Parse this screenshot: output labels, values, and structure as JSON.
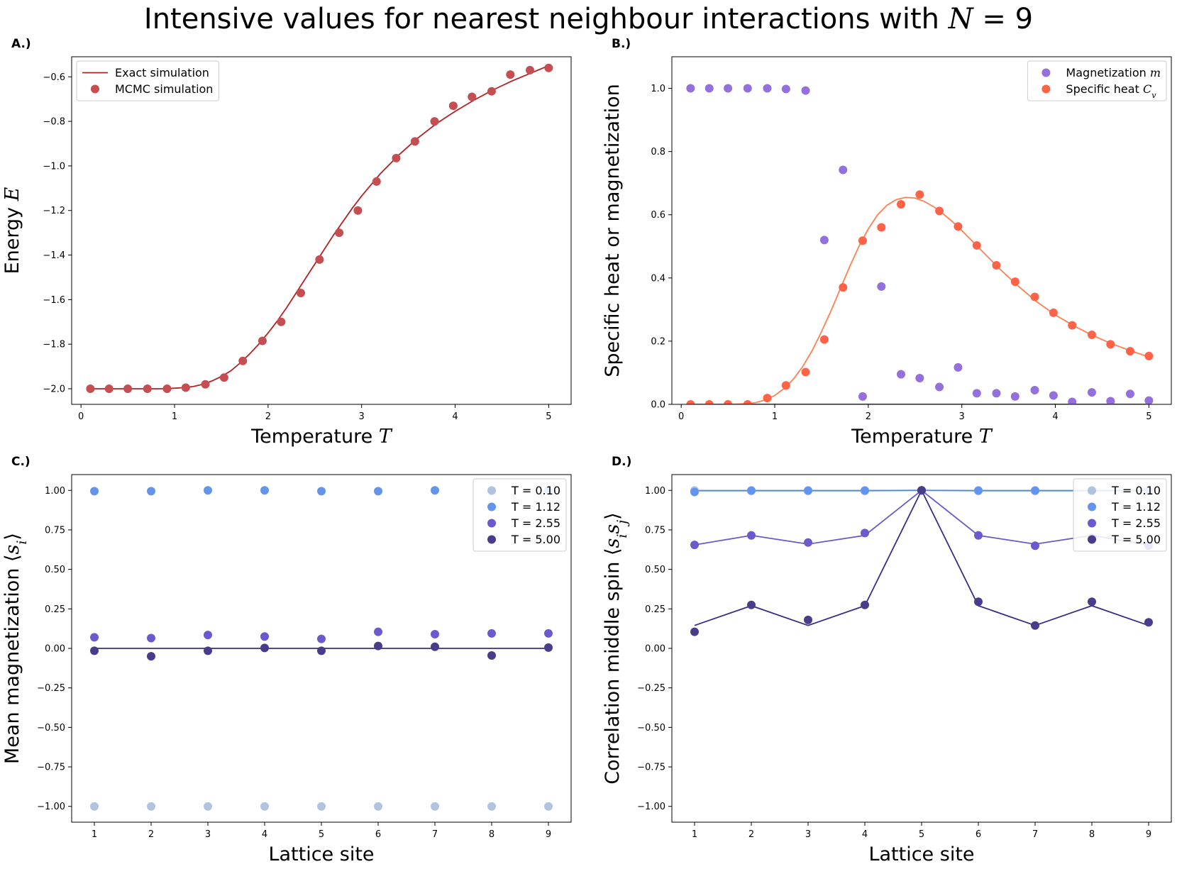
{
  "figure": {
    "title_prefix": "Intensive values for nearest neighbour interactions with ",
    "title_math": "N",
    "title_suffix": " = 9"
  },
  "chart_data": [
    {
      "id": "A",
      "panel_label": "A.)",
      "type": "scatter",
      "xlabel": "Temperature",
      "xlabel_math": "T",
      "ylabel": "Energy",
      "ylabel_math": "E",
      "xlim": [
        -0.1,
        5.24
      ],
      "ylim": [
        -2.07,
        -0.51
      ],
      "xticks": [
        0,
        1,
        2,
        3,
        4,
        5
      ],
      "xtick_labels": [
        "0",
        "1",
        "2",
        "3",
        "4",
        "5"
      ],
      "yticks": [
        -2.0,
        -1.8,
        -1.6,
        -1.4,
        -1.2,
        -1.0,
        -0.8,
        -0.6
      ],
      "ytick_labels": [
        "−2.0",
        "−1.8",
        "−1.6",
        "−1.4",
        "−1.2",
        "−1.0",
        "−0.8",
        "−0.6"
      ],
      "legend_position": "upper-left",
      "series": [
        {
          "name": "Exact simulation",
          "kind": "line",
          "color": "#b22222",
          "x": [
            0.1,
            0.3,
            0.5,
            0.7,
            0.9,
            1.1,
            1.2,
            1.3,
            1.4,
            1.5,
            1.6,
            1.7,
            1.8,
            1.9,
            2.0,
            2.1,
            2.2,
            2.3,
            2.4,
            2.5,
            2.6,
            2.7,
            2.8,
            2.9,
            3.0,
            3.2,
            3.4,
            3.6,
            3.8,
            4.0,
            4.2,
            4.4,
            4.6,
            4.8,
            5.0
          ],
          "y": [
            -2.0,
            -2.0,
            -2.0,
            -2.0,
            -2.0,
            -1.995,
            -1.99,
            -1.98,
            -1.965,
            -1.945,
            -1.92,
            -1.885,
            -1.845,
            -1.8,
            -1.75,
            -1.695,
            -1.635,
            -1.57,
            -1.505,
            -1.44,
            -1.375,
            -1.31,
            -1.25,
            -1.19,
            -1.135,
            -1.035,
            -0.95,
            -0.875,
            -0.81,
            -0.755,
            -0.705,
            -0.66,
            -0.62,
            -0.585,
            -0.55
          ]
        },
        {
          "name": "MCMC simulation",
          "kind": "scatter",
          "color": "#c44e52",
          "x": [
            0.1,
            0.3,
            0.5,
            0.71,
            0.92,
            1.12,
            1.33,
            1.53,
            1.73,
            1.94,
            2.14,
            2.35,
            2.55,
            2.76,
            2.96,
            3.16,
            3.37,
            3.57,
            3.78,
            3.98,
            4.18,
            4.39,
            4.59,
            4.8,
            5.0
          ],
          "y": [
            -2.0,
            -2.0,
            -2.0,
            -2.0,
            -2.0,
            -1.995,
            -1.98,
            -1.95,
            -1.875,
            -1.785,
            -1.7,
            -1.57,
            -1.42,
            -1.3,
            -1.2,
            -1.07,
            -0.965,
            -0.89,
            -0.8,
            -0.73,
            -0.69,
            -0.665,
            -0.59,
            -0.57,
            -0.56
          ]
        }
      ]
    },
    {
      "id": "B",
      "panel_label": "B.)",
      "type": "scatter",
      "xlabel": "Temperature",
      "xlabel_math": "T",
      "ylabel": "Specific heat or magnetization",
      "ylabel_math": "",
      "xlim": [
        -0.1,
        5.24
      ],
      "ylim": [
        0.0,
        1.1
      ],
      "xticks": [
        0,
        1,
        2,
        3,
        4,
        5
      ],
      "xtick_labels": [
        "0",
        "1",
        "2",
        "3",
        "4",
        "5"
      ],
      "yticks": [
        0.0,
        0.2,
        0.4,
        0.6,
        0.8,
        1.0
      ],
      "ytick_labels": [
        "0.0",
        "0.2",
        "0.4",
        "0.6",
        "0.8",
        "1.0"
      ],
      "legend_position": "upper-right",
      "series": [
        {
          "name": "Magnetization m line",
          "legend": false,
          "kind": "line",
          "color": "#3b2c85",
          "x": [
            0.1,
            5.0
          ],
          "y": [
            0.0,
            0.0
          ]
        },
        {
          "name": "Specific heat Cv line",
          "legend": false,
          "kind": "line",
          "color": "#ff7f50",
          "x": [
            0.1,
            0.5,
            0.7,
            0.8,
            0.9,
            1.0,
            1.1,
            1.2,
            1.3,
            1.4,
            1.5,
            1.6,
            1.7,
            1.8,
            1.9,
            2.0,
            2.1,
            2.2,
            2.3,
            2.4,
            2.5,
            2.6,
            2.7,
            2.8,
            2.9,
            3.0,
            3.2,
            3.4,
            3.6,
            3.8,
            4.0,
            4.2,
            4.4,
            4.6,
            4.8,
            5.0
          ],
          "y": [
            0.0,
            0.0,
            0.002,
            0.006,
            0.014,
            0.028,
            0.05,
            0.08,
            0.12,
            0.17,
            0.23,
            0.295,
            0.365,
            0.435,
            0.5,
            0.555,
            0.6,
            0.63,
            0.648,
            0.655,
            0.653,
            0.642,
            0.625,
            0.603,
            0.578,
            0.55,
            0.49,
            0.43,
            0.375,
            0.325,
            0.283,
            0.248,
            0.218,
            0.192,
            0.17,
            0.15
          ]
        },
        {
          "name": "Magnetization",
          "name_math": "m",
          "kind": "scatter",
          "color": "#9370db",
          "x": [
            0.1,
            0.3,
            0.5,
            0.71,
            0.92,
            1.12,
            1.33,
            1.53,
            1.73,
            1.94,
            2.14,
            2.35,
            2.55,
            2.76,
            2.96,
            3.16,
            3.37,
            3.57,
            3.78,
            3.98,
            4.18,
            4.39,
            4.59,
            4.8,
            5.0
          ],
          "y": [
            1.0,
            1.0,
            1.0,
            1.0,
            1.0,
            0.998,
            0.993,
            0.52,
            0.742,
            0.025,
            0.373,
            0.095,
            0.083,
            0.055,
            0.117,
            0.035,
            0.035,
            0.025,
            0.045,
            0.028,
            0.008,
            0.038,
            0.01,
            0.033,
            0.012
          ]
        },
        {
          "name": "Specific heat",
          "name_math": "C",
          "name_sub": "v",
          "kind": "scatter",
          "color": "#ff6347",
          "x": [
            0.1,
            0.3,
            0.5,
            0.71,
            0.92,
            1.12,
            1.33,
            1.53,
            1.73,
            1.94,
            2.14,
            2.35,
            2.55,
            2.76,
            2.96,
            3.16,
            3.37,
            3.57,
            3.78,
            3.98,
            4.18,
            4.39,
            4.59,
            4.8,
            5.0
          ],
          "y": [
            0.0,
            0.0,
            0.0,
            0.0,
            0.02,
            0.06,
            0.102,
            0.205,
            0.37,
            0.518,
            0.56,
            0.633,
            0.664,
            0.612,
            0.563,
            0.503,
            0.44,
            0.388,
            0.34,
            0.29,
            0.25,
            0.22,
            0.19,
            0.168,
            0.153
          ]
        }
      ]
    },
    {
      "id": "C",
      "panel_label": "C.)",
      "type": "scatter",
      "xlabel": "Lattice site",
      "xlabel_math": "",
      "ylabel": "Mean magnetization",
      "ylabel_math": "⟨s_i⟩",
      "xlim": [
        0.6,
        9.4
      ],
      "ylim": [
        -1.1,
        1.1
      ],
      "xticks": [
        1,
        2,
        3,
        4,
        5,
        6,
        7,
        8,
        9
      ],
      "xtick_labels": [
        "1",
        "2",
        "3",
        "4",
        "5",
        "6",
        "7",
        "8",
        "9"
      ],
      "yticks": [
        -1.0,
        -0.75,
        -0.5,
        -0.25,
        0.0,
        0.25,
        0.5,
        0.75,
        1.0
      ],
      "ytick_labels": [
        "−1.00",
        "−0.75",
        "−0.50",
        "−0.25",
        "0.00",
        "0.25",
        "0.50",
        "0.75",
        "1.00"
      ],
      "legend_position": "upper-right",
      "series": [
        {
          "name": "line T0.10",
          "legend": false,
          "kind": "line",
          "color": "#3b2c85",
          "x": [
            1,
            9
          ],
          "y": [
            0.0,
            0.0
          ]
        },
        {
          "name": "T = 0.10",
          "kind": "scatter",
          "color": "#b0c4de",
          "x": [
            1,
            2,
            3,
            4,
            5,
            6,
            7,
            8,
            9
          ],
          "y": [
            -1.0,
            -1.0,
            -1.0,
            -1.0,
            -1.0,
            -1.0,
            -1.0,
            -1.0,
            -1.0
          ]
        },
        {
          "name": "T = 1.12",
          "kind": "scatter",
          "color": "#6495ed",
          "x": [
            1,
            2,
            3,
            4,
            5,
            6,
            7,
            8,
            9
          ],
          "y": [
            0.995,
            0.995,
            1.0,
            1.0,
            0.995,
            0.995,
            1.0,
            1.0,
            1.0
          ]
        },
        {
          "name": "T = 2.55",
          "kind": "scatter",
          "color": "#6a5acd",
          "x": [
            1,
            2,
            3,
            4,
            5,
            6,
            7,
            8,
            9
          ],
          "y": [
            0.07,
            0.065,
            0.085,
            0.075,
            0.06,
            0.105,
            0.09,
            0.095,
            0.095
          ]
        },
        {
          "name": "T = 5.00",
          "kind": "scatter",
          "color": "#483d8b",
          "x": [
            1,
            2,
            3,
            4,
            5,
            6,
            7,
            8,
            9
          ],
          "y": [
            -0.015,
            -0.05,
            -0.015,
            0.003,
            -0.015,
            0.015,
            0.01,
            -0.045,
            0.005
          ]
        }
      ]
    },
    {
      "id": "D",
      "panel_label": "D.)",
      "type": "line",
      "xlabel": "Lattice site",
      "xlabel_math": "",
      "ylabel": "Correlation middle spin",
      "ylabel_math": "⟨s_i s_j⟩",
      "xlim": [
        0.6,
        9.4
      ],
      "ylim": [
        -1.1,
        1.1
      ],
      "xticks": [
        1,
        2,
        3,
        4,
        5,
        6,
        7,
        8,
        9
      ],
      "xtick_labels": [
        "1",
        "2",
        "3",
        "4",
        "5",
        "6",
        "7",
        "8",
        "9"
      ],
      "yticks": [
        -1.0,
        -0.75,
        -0.5,
        -0.25,
        0.0,
        0.25,
        0.5,
        0.75,
        1.0
      ],
      "ytick_labels": [
        "−1.00",
        "−0.75",
        "−0.50",
        "−0.25",
        "0.00",
        "0.25",
        "0.50",
        "0.75",
        "1.00"
      ],
      "legend_position": "upper-right",
      "series": [
        {
          "name": "line T0.10",
          "legend": false,
          "kind": "line",
          "color": "#b0c4de",
          "x": [
            1,
            2,
            3,
            4,
            5,
            6,
            7,
            8,
            9
          ],
          "y": [
            1.0,
            1.0,
            1.0,
            1.0,
            1.0,
            1.0,
            1.0,
            1.0,
            1.0
          ]
        },
        {
          "name": "line T1.12",
          "legend": false,
          "kind": "line",
          "color": "#4a86e8",
          "x": [
            1,
            2,
            3,
            4,
            5,
            6,
            7,
            8,
            9
          ],
          "y": [
            0.998,
            0.998,
            0.998,
            0.998,
            1.0,
            0.998,
            0.998,
            0.998,
            0.998
          ]
        },
        {
          "name": "line T2.55",
          "legend": false,
          "kind": "line",
          "color": "#6a5acd",
          "x": [
            1,
            2,
            3,
            4,
            5,
            6,
            7,
            8,
            9
          ],
          "y": [
            0.655,
            0.715,
            0.66,
            0.715,
            1.0,
            0.715,
            0.66,
            0.715,
            0.655
          ]
        },
        {
          "name": "line T5.00",
          "legend": false,
          "kind": "line",
          "color": "#3b2c85",
          "x": [
            1,
            2,
            3,
            4,
            5,
            6,
            7,
            8,
            9
          ],
          "y": [
            0.145,
            0.27,
            0.145,
            0.27,
            1.0,
            0.27,
            0.145,
            0.27,
            0.145
          ]
        },
        {
          "name": "T = 0.10",
          "kind": "scatter",
          "color": "#b0c4de",
          "x": [
            1,
            2,
            3,
            4,
            5,
            6,
            7,
            8,
            9
          ],
          "y": [
            1.0,
            1.0,
            1.0,
            1.0,
            1.0,
            1.0,
            1.0,
            1.0,
            1.0
          ]
        },
        {
          "name": "T = 1.12",
          "kind": "scatter",
          "color": "#6495ed",
          "x": [
            1,
            2,
            3,
            4,
            5,
            6,
            7,
            8,
            9
          ],
          "y": [
            0.99,
            0.998,
            0.998,
            0.998,
            1.0,
            0.998,
            0.998,
            0.998,
            0.998
          ]
        },
        {
          "name": "T = 2.55",
          "kind": "scatter",
          "color": "#6a5acd",
          "x": [
            1,
            2,
            3,
            4,
            5,
            6,
            7,
            8,
            9
          ],
          "y": [
            0.655,
            0.715,
            0.67,
            0.73,
            1.0,
            0.715,
            0.65,
            0.7,
            0.65
          ]
        },
        {
          "name": "T = 5.00",
          "kind": "scatter",
          "color": "#483d8b",
          "x": [
            1,
            2,
            3,
            4,
            5,
            6,
            7,
            8,
            9
          ],
          "y": [
            0.105,
            0.275,
            0.18,
            0.275,
            1.0,
            0.295,
            0.145,
            0.295,
            0.165
          ]
        }
      ]
    }
  ]
}
